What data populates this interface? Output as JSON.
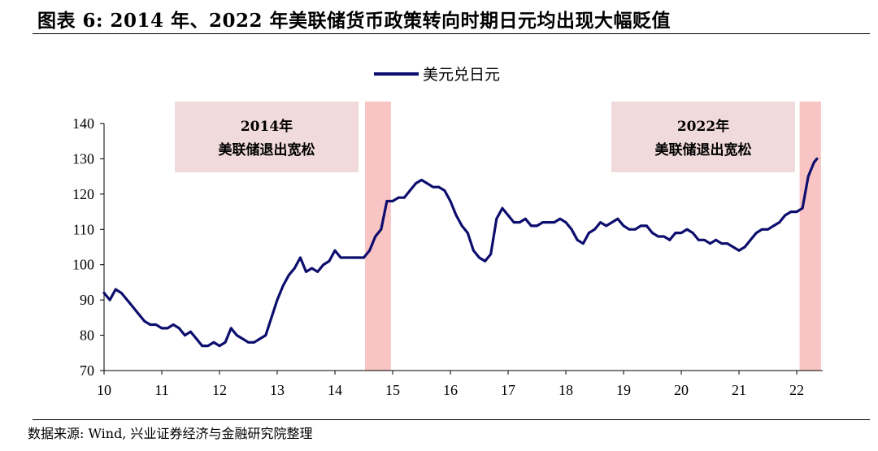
{
  "figure": {
    "title": "图表 6:  2014 年、2022 年美联储货币政策转向时期日元均出现大幅贬值",
    "source": "数据来源:  Wind,  兴业证券经济与金融研究院整理"
  },
  "chart_data": {
    "type": "line",
    "title": "图表 6:  2014 年、2022 年美联储货币政策转向时期日元均出现大幅贬值",
    "xlabel": "",
    "ylabel": "",
    "xlim": [
      2010,
      2022.45
    ],
    "ylim": [
      70,
      140
    ],
    "x_ticks": [
      2010,
      2011,
      2012,
      2013,
      2014,
      2015,
      2016,
      2017,
      2018,
      2019,
      2020,
      2021,
      2022
    ],
    "x_tick_labels": [
      "10",
      "11",
      "12",
      "13",
      "14",
      "15",
      "16",
      "17",
      "18",
      "19",
      "20",
      "21",
      "22"
    ],
    "y_ticks": [
      70,
      80,
      90,
      100,
      110,
      120,
      130,
      140
    ],
    "y_tick_labels": [
      "70",
      "80",
      "90",
      "100",
      "110",
      "120",
      "130",
      "140"
    ],
    "grid": false,
    "legend_position": "top-center",
    "series": [
      {
        "name": "美元兑日元",
        "color": "#0d0d6e",
        "x": [
          2010.0,
          2010.1,
          2010.2,
          2010.3,
          2010.4,
          2010.5,
          2010.6,
          2010.7,
          2010.8,
          2010.9,
          2011.0,
          2011.1,
          2011.2,
          2011.3,
          2011.4,
          2011.5,
          2011.6,
          2011.7,
          2011.8,
          2011.9,
          2012.0,
          2012.1,
          2012.2,
          2012.3,
          2012.4,
          2012.5,
          2012.6,
          2012.7,
          2012.8,
          2012.9,
          2013.0,
          2013.1,
          2013.2,
          2013.3,
          2013.4,
          2013.5,
          2013.6,
          2013.7,
          2013.8,
          2013.9,
          2014.0,
          2014.1,
          2014.2,
          2014.3,
          2014.4,
          2014.5,
          2014.6,
          2014.7,
          2014.8,
          2014.9,
          2015.0,
          2015.1,
          2015.2,
          2015.3,
          2015.4,
          2015.5,
          2015.6,
          2015.7,
          2015.8,
          2015.9,
          2016.0,
          2016.1,
          2016.2,
          2016.3,
          2016.4,
          2016.5,
          2016.6,
          2016.7,
          2016.8,
          2016.9,
          2017.0,
          2017.1,
          2017.2,
          2017.3,
          2017.4,
          2017.5,
          2017.6,
          2017.7,
          2017.8,
          2017.9,
          2018.0,
          2018.1,
          2018.2,
          2018.3,
          2018.4,
          2018.5,
          2018.6,
          2018.7,
          2018.8,
          2018.9,
          2019.0,
          2019.1,
          2019.2,
          2019.3,
          2019.4,
          2019.5,
          2019.6,
          2019.7,
          2019.8,
          2019.9,
          2020.0,
          2020.1,
          2020.2,
          2020.3,
          2020.4,
          2020.5,
          2020.6,
          2020.7,
          2020.8,
          2020.9,
          2021.0,
          2021.1,
          2021.2,
          2021.3,
          2021.4,
          2021.5,
          2021.6,
          2021.7,
          2021.8,
          2021.9,
          2022.0,
          2022.1,
          2022.2,
          2022.3,
          2022.35
        ],
        "values": [
          92,
          90,
          93,
          92,
          90,
          88,
          86,
          84,
          83,
          83,
          82,
          82,
          83,
          82,
          80,
          81,
          79,
          77,
          77,
          78,
          77,
          78,
          82,
          80,
          79,
          78,
          78,
          79,
          80,
          85,
          90,
          94,
          97,
          99,
          102,
          98,
          99,
          98,
          100,
          101,
          104,
          102,
          102,
          102,
          102,
          102,
          104,
          108,
          110,
          118,
          118,
          119,
          119,
          121,
          123,
          124,
          123,
          122,
          122,
          121,
          118,
          114,
          111,
          109,
          104,
          102,
          101,
          103,
          113,
          116,
          114,
          112,
          112,
          113,
          111,
          111,
          112,
          112,
          112,
          113,
          112,
          110,
          107,
          106,
          109,
          110,
          112,
          111,
          112,
          113,
          111,
          110,
          110,
          111,
          111,
          109,
          108,
          108,
          107,
          109,
          109,
          110,
          109,
          107,
          107,
          106,
          107,
          106,
          106,
          105,
          104,
          105,
          107,
          109,
          110,
          110,
          111,
          112,
          114,
          115,
          115,
          116,
          125,
          129,
          130
        ]
      }
    ],
    "shaded_periods": [
      {
        "x_start": 2014.52,
        "x_end": 2014.97,
        "color": "#f9c4c4"
      },
      {
        "x_start": 2022.05,
        "x_end": 2022.42,
        "color": "#f9c4c4"
      }
    ],
    "annotations": [
      {
        "lines": [
          "2014年",
          "美联储退出宽松"
        ],
        "box_color": "#f1dadb"
      },
      {
        "lines": [
          "2022年",
          "美联储退出宽松"
        ],
        "box_color": "#f1dadb"
      }
    ]
  }
}
